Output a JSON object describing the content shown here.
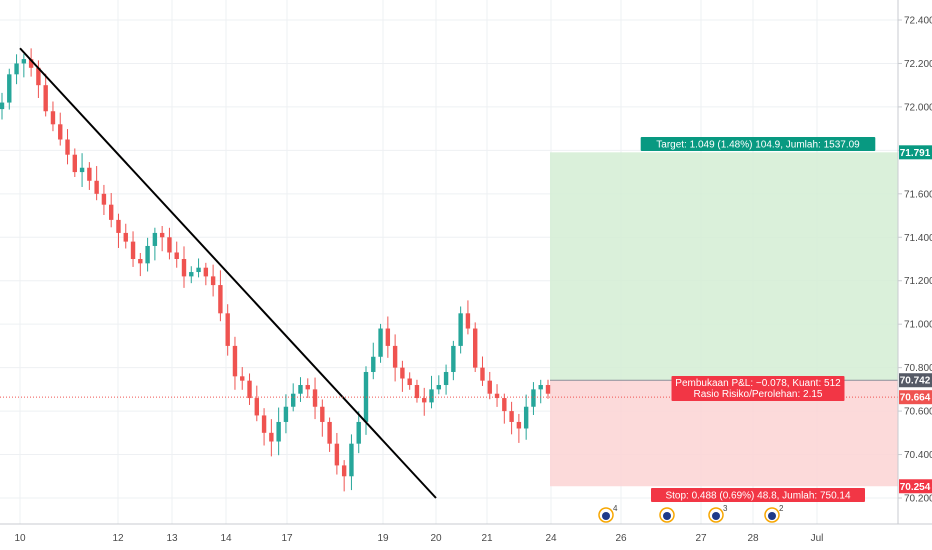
{
  "chart_data": {
    "type": "candlestick",
    "price_axis": {
      "labels": [
        "72.400",
        "72.200",
        "72.000",
        "71.800",
        "71.600",
        "71.400",
        "71.200",
        "71.000",
        "70.800",
        "70.600",
        "70.400",
        "70.200"
      ],
      "ylim": [
        70.15,
        72.5
      ]
    },
    "time_axis": {
      "labels": [
        "10",
        "12",
        "13",
        "14",
        "17",
        "19",
        "20",
        "21",
        "24",
        "26",
        "27",
        "28",
        "Jul"
      ]
    },
    "colors": {
      "up": "#26a69a",
      "down": "#ef5350",
      "target_zone": "#d3edd3",
      "stop_zone": "#fbd3d3",
      "target_tag": "#089981",
      "stop_tag": "#f23645",
      "entry_tag": "#555a66",
      "current_tag": "#ef5350"
    },
    "close_path": [
      72.02,
      72.15,
      72.2,
      72.22,
      72.18,
      72.1,
      71.98,
      71.92,
      71.85,
      71.78,
      71.7,
      71.72,
      71.66,
      71.6,
      71.55,
      71.48,
      71.42,
      71.38,
      71.3,
      71.28,
      71.36,
      71.42,
      71.4,
      71.33,
      71.3,
      71.22,
      71.24,
      71.26,
      71.22,
      71.18,
      71.05,
      70.9,
      70.76,
      70.74,
      70.66,
      70.58,
      70.5,
      70.46,
      70.55,
      70.62,
      70.68,
      70.72,
      70.7,
      70.62,
      70.55,
      70.45,
      70.35,
      70.3,
      70.45,
      70.55,
      70.78,
      70.85,
      70.98,
      70.9,
      70.8,
      70.75,
      70.72,
      70.66,
      70.64,
      70.7,
      70.72,
      70.78,
      70.9,
      71.05,
      70.98,
      70.8,
      70.74,
      70.68,
      70.66,
      70.6,
      70.55,
      70.52,
      70.62,
      70.7,
      70.72,
      70.68
    ],
    "trendline": {
      "from": [
        "10",
        72.27
      ],
      "to": [
        "20",
        70.2
      ],
      "color": "#000000"
    },
    "position": {
      "entry": 70.742,
      "target": 71.791,
      "stop": 70.254,
      "current": 70.664,
      "target_label": "Target: 1.049 (1.48%) 104.9, Jumlah: 1537.09",
      "entry_label_1": "Pembukaan P&L: −0.078, Kuant: 512",
      "entry_label_2": "Rasio Risiko/Perolehan: 2.15",
      "stop_label": "Stop: 0.488 (0.69%) 48.8, Jumlah: 750.14",
      "target_price": "71.791",
      "entry_price": "70.742",
      "current_price": "70.664",
      "stop_price": "70.254"
    },
    "events": [
      {
        "day": "24+",
        "icon": "flag-icon",
        "count": "4"
      },
      {
        "day": "26+",
        "icon": "flag-icon",
        "count": ""
      },
      {
        "day": "27",
        "icon": "flag-icon",
        "count": "3"
      },
      {
        "day": "28",
        "icon": "flag-icon",
        "count": "2"
      }
    ]
  }
}
